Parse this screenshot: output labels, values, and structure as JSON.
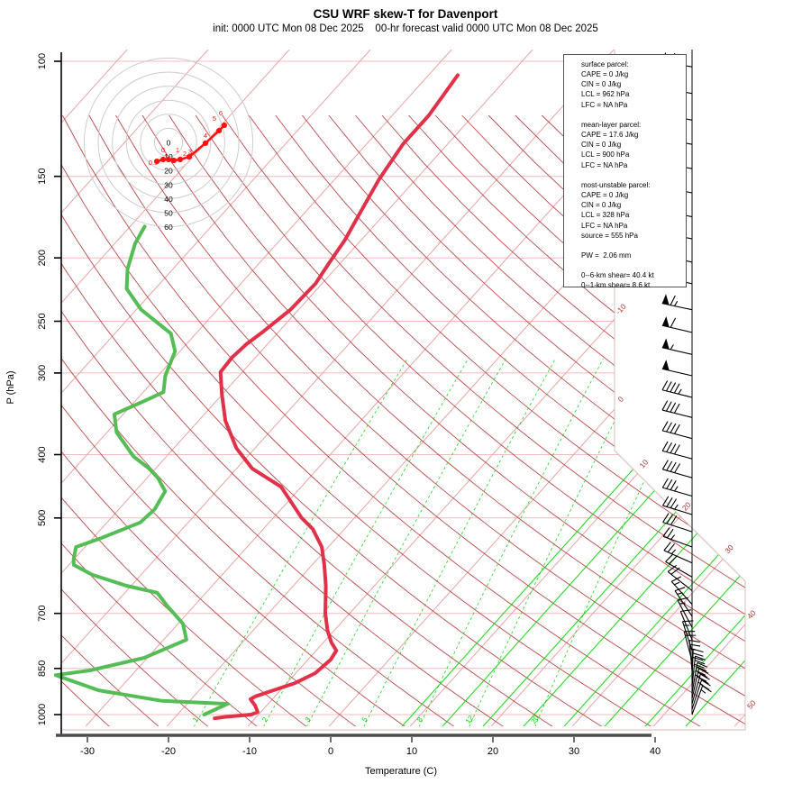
{
  "title": "CSU WRF skew-T for Davenport",
  "subtitle": "init: 0000 UTC Mon 08 Dec 2025    00-hr forecast valid 0000 UTC Mon 08 Dec 2025",
  "axes": {
    "y_label": "P (hPa)",
    "x_label": "Temperature (C)",
    "pressure_ticks": [
      100,
      150,
      200,
      250,
      300,
      400,
      500,
      700,
      850,
      1000
    ],
    "temp_ticks": [
      -30,
      -20,
      -10,
      0,
      10,
      20,
      30,
      40
    ],
    "isotherm_edge_labels": [
      -10,
      0,
      10,
      20,
      30,
      40,
      50
    ]
  },
  "info_box": {
    "lines": [
      "surface parcel:",
      "CAPE = 0 J/kg",
      "CIN = 0 J/kg",
      "LCL = 962 hPa",
      "LFC = NA hPa",
      "",
      "mean-layer parcel:",
      "CAPE = 17.6 J/kg",
      "CIN = 0 J/kg",
      "LCL = 900 hPa",
      "LFC = NA hPa",
      "",
      "most-unstable parcel:",
      "CAPE = 0 J/kg",
      "CIN = 0 J/kg",
      "LCL = 328 hPa",
      "LFC = NA hPa",
      "source = 555 hPa",
      "",
      "PW =  2.06 mm",
      "",
      "0--6-km shear= 40.4 kt",
      "0--1-km shear= 8.6 kt"
    ]
  },
  "hodograph": {
    "ring_labels": [
      "0",
      "10",
      "20",
      "30",
      "40",
      "50",
      "60"
    ],
    "ring_step_kt": 10,
    "trace_uv_kt": [
      [
        -8.3,
        -13.5
      ],
      [
        -3.8,
        -12.2
      ],
      [
        0,
        -12.2
      ],
      [
        3.8,
        -12.8
      ],
      [
        8.3,
        -12.2
      ],
      [
        14.7,
        -10.3
      ],
      [
        26.3,
        -0.6
      ],
      [
        35.9,
        8.3
      ],
      [
        39.7,
        12.2
      ]
    ],
    "point_labels": [
      {
        "t": "0.5",
        "u": -10.9,
        "v": -16.0
      },
      {
        "t": "0",
        "u": -3.8,
        "v": -7.1
      },
      {
        "t": "1",
        "u": 6.4,
        "v": -7.1
      },
      {
        "t": "2",
        "u": 11.5,
        "v": -9.6
      },
      {
        "t": "3",
        "u": 15.4,
        "v": -8.3
      },
      {
        "t": "4",
        "u": 26.3,
        "v": 3.2
      },
      {
        "t": "5",
        "u": 32.7,
        "v": 15.4
      },
      {
        "t": "6",
        "u": 37.2,
        "v": 19.2
      }
    ]
  },
  "chart_data": {
    "type": "line",
    "title": "CSU WRF skew-T for Davenport",
    "xlabel": "Temperature (C)",
    "ylabel": "P (hPa)",
    "x_ticks": [
      -30,
      -20,
      -10,
      0,
      10,
      20,
      30,
      40
    ],
    "pressure_range_hPa": [
      100,
      1045
    ],
    "isotherm_step_C": 10,
    "dry_adiabat_theta_step_C": 6,
    "mixing_ratio_lines_g_kg": [
      1,
      2,
      3,
      5,
      8,
      12,
      20
    ],
    "moist_adiabat_surface_temps_C": [
      9,
      14,
      19,
      24,
      29,
      34,
      39,
      44
    ],
    "temperature_profile_hPa_C": [
      [
        105,
        -56.4
      ],
      [
        121,
        -55.5
      ],
      [
        134,
        -55.5
      ],
      [
        152,
        -54.5
      ],
      [
        170,
        -53.2
      ],
      [
        188,
        -52.0
      ],
      [
        204,
        -51.4
      ],
      [
        219,
        -50.8
      ],
      [
        240,
        -51.0
      ],
      [
        259,
        -51.9
      ],
      [
        271,
        -52.6
      ],
      [
        284,
        -52.9
      ],
      [
        299,
        -52.7
      ],
      [
        323,
        -50.1
      ],
      [
        355,
        -46.7
      ],
      [
        391,
        -42.3
      ],
      [
        420,
        -38.1
      ],
      [
        448,
        -32.5
      ],
      [
        500,
        -26.5
      ],
      [
        520,
        -23.9
      ],
      [
        554,
        -20.8
      ],
      [
        590,
        -18.5
      ],
      [
        635,
        -16.0
      ],
      [
        700,
        -13.0
      ],
      [
        744,
        -10.8
      ],
      [
        776,
        -9.0
      ],
      [
        798,
        -7.5
      ],
      [
        824,
        -7.2
      ],
      [
        864,
        -7.6
      ],
      [
        895,
        -9.0
      ],
      [
        921,
        -11.1
      ],
      [
        938,
        -12.4
      ],
      [
        947,
        -12.7
      ],
      [
        969,
        -11.4
      ],
      [
        991,
        -10.4
      ],
      [
        1000,
        -10.9
      ],
      [
        1008,
        -13.8
      ],
      [
        1013,
        -15.0
      ]
    ],
    "dewpoint_profile_hPa_C": [
      [
        179,
        -78.2
      ],
      [
        190,
        -77.5
      ],
      [
        208,
        -75.6
      ],
      [
        223,
        -73.5
      ],
      [
        240,
        -69.4
      ],
      [
        261,
        -63.1
      ],
      [
        278,
        -60.6
      ],
      [
        303,
        -59.1
      ],
      [
        321,
        -57.5
      ],
      [
        332,
        -59.0
      ],
      [
        347,
        -61.1
      ],
      [
        370,
        -58.8
      ],
      [
        403,
        -54.0
      ],
      [
        420,
        -50.8
      ],
      [
        434,
        -48.7
      ],
      [
        455,
        -46.3
      ],
      [
        485,
        -45.6
      ],
      [
        508,
        -45.9
      ],
      [
        537,
        -49.0
      ],
      [
        554,
        -51.1
      ],
      [
        577,
        -50.1
      ],
      [
        590,
        -49.4
      ],
      [
        611,
        -46.0
      ],
      [
        635,
        -40.6
      ],
      [
        651,
        -36.0
      ],
      [
        681,
        -33.4
      ],
      [
        726,
        -29.4
      ],
      [
        768,
        -27.2
      ],
      [
        819,
        -30.4
      ],
      [
        856,
        -35.7
      ],
      [
        870,
        -39.4
      ],
      [
        918,
        -32.4
      ],
      [
        953,
        -23.4
      ],
      [
        963,
        -15.0
      ],
      [
        1000,
        -16.7
      ]
    ]
  },
  "wind_barbs": [
    {
      "p": 102,
      "rot": 10,
      "pen": 1,
      "full": 2,
      "half": 1
    },
    {
      "p": 112,
      "rot": 10,
      "pen": 1,
      "full": 2,
      "half": 1
    },
    {
      "p": 123,
      "rot": 10,
      "pen": 1,
      "full": 2,
      "half": 1
    },
    {
      "p": 134,
      "rot": 11,
      "pen": 1,
      "full": 2,
      "half": 0
    },
    {
      "p": 146,
      "rot": 11,
      "pen": 1,
      "full": 2,
      "half": 1
    },
    {
      "p": 159,
      "rot": 11,
      "pen": 1,
      "full": 2,
      "half": 0
    },
    {
      "p": 173,
      "rot": 12,
      "pen": 1,
      "full": 2,
      "half": 0
    },
    {
      "p": 187,
      "rot": 12,
      "pen": 1,
      "full": 2,
      "half": 0
    },
    {
      "p": 203,
      "rot": 12,
      "pen": 1,
      "full": 2,
      "half": 0
    },
    {
      "p": 219,
      "rot": 12,
      "pen": 1,
      "full": 2,
      "half": 0
    },
    {
      "p": 240,
      "rot": 12,
      "pen": 1,
      "full": 1,
      "half": 1
    },
    {
      "p": 260,
      "rot": 13,
      "pen": 1,
      "full": 1,
      "half": 0
    },
    {
      "p": 281,
      "rot": 13,
      "pen": 1,
      "full": 0,
      "half": 1
    },
    {
      "p": 303,
      "rot": 13,
      "pen": 1,
      "full": 0,
      "half": 0
    },
    {
      "p": 327,
      "rot": 14,
      "pen": 0,
      "full": 4,
      "half": 1
    },
    {
      "p": 351,
      "rot": 14,
      "pen": 0,
      "full": 4,
      "half": 0
    },
    {
      "p": 378,
      "rot": 15,
      "pen": 0,
      "full": 4,
      "half": 0
    },
    {
      "p": 406,
      "rot": 15,
      "pen": 0,
      "full": 4,
      "half": 0
    },
    {
      "p": 434,
      "rot": 16,
      "pen": 0,
      "full": 4,
      "half": 0
    },
    {
      "p": 463,
      "rot": 16,
      "pen": 0,
      "full": 3,
      "half": 1
    },
    {
      "p": 494,
      "rot": 17,
      "pen": 0,
      "full": 3,
      "half": 1
    },
    {
      "p": 525,
      "rot": 18,
      "pen": 0,
      "full": 3,
      "half": 0
    },
    {
      "p": 554,
      "rot": 20,
      "pen": 0,
      "full": 2,
      "half": 1
    },
    {
      "p": 586,
      "rot": 24,
      "pen": 0,
      "full": 2,
      "half": 1
    },
    {
      "p": 616,
      "rot": 30,
      "pen": 0,
      "full": 2,
      "half": 0
    },
    {
      "p": 646,
      "rot": 38,
      "pen": 0,
      "full": 2,
      "half": 0
    },
    {
      "p": 678,
      "rot": 48,
      "pen": 0,
      "full": 1,
      "half": 1
    },
    {
      "p": 707,
      "rot": 56,
      "pen": 0,
      "full": 1,
      "half": 1
    },
    {
      "p": 735,
      "rot": 62,
      "pen": 0,
      "full": 1,
      "half": 1
    },
    {
      "p": 768,
      "rot": 68,
      "pen": 0,
      "full": 1,
      "half": 0
    },
    {
      "p": 798,
      "rot": 72,
      "pen": 0,
      "full": 1,
      "half": 1
    },
    {
      "p": 828,
      "rot": 75,
      "pen": 0,
      "full": 2,
      "half": 0
    },
    {
      "p": 857,
      "rot": 85,
      "pen": 0,
      "full": 2,
      "half": 1
    },
    {
      "p": 884,
      "rot": 92,
      "pen": 0,
      "full": 3,
      "half": 0
    },
    {
      "p": 906,
      "rot": 96,
      "pen": 0,
      "full": 3,
      "half": 0
    },
    {
      "p": 926,
      "rot": 100,
      "pen": 0,
      "full": 3,
      "half": 1
    },
    {
      "p": 944,
      "rot": 103,
      "pen": 0,
      "full": 3,
      "half": 0
    },
    {
      "p": 962,
      "rot": 106,
      "pen": 0,
      "full": 2,
      "half": 1
    },
    {
      "p": 981,
      "rot": 108,
      "pen": 0,
      "full": 2,
      "half": 0
    },
    {
      "p": 1000,
      "rot": 110,
      "pen": 0,
      "full": 1,
      "half": 1
    }
  ],
  "colors": {
    "temperature_curve": "#e13148",
    "dewpoint_curve": "#55bd55",
    "isotherm": "#e9a3a3",
    "isobar": "#f2bcbc",
    "dry_adiabat": "#b03535",
    "moist_adiabat": "#00d400",
    "mixing_ratio": "#00d400",
    "edge_label": "#b03535",
    "hodograph_ring": "#cccccc",
    "hodograph_trace": "#ff1111",
    "barb": "#000000",
    "axis": "#000000"
  }
}
